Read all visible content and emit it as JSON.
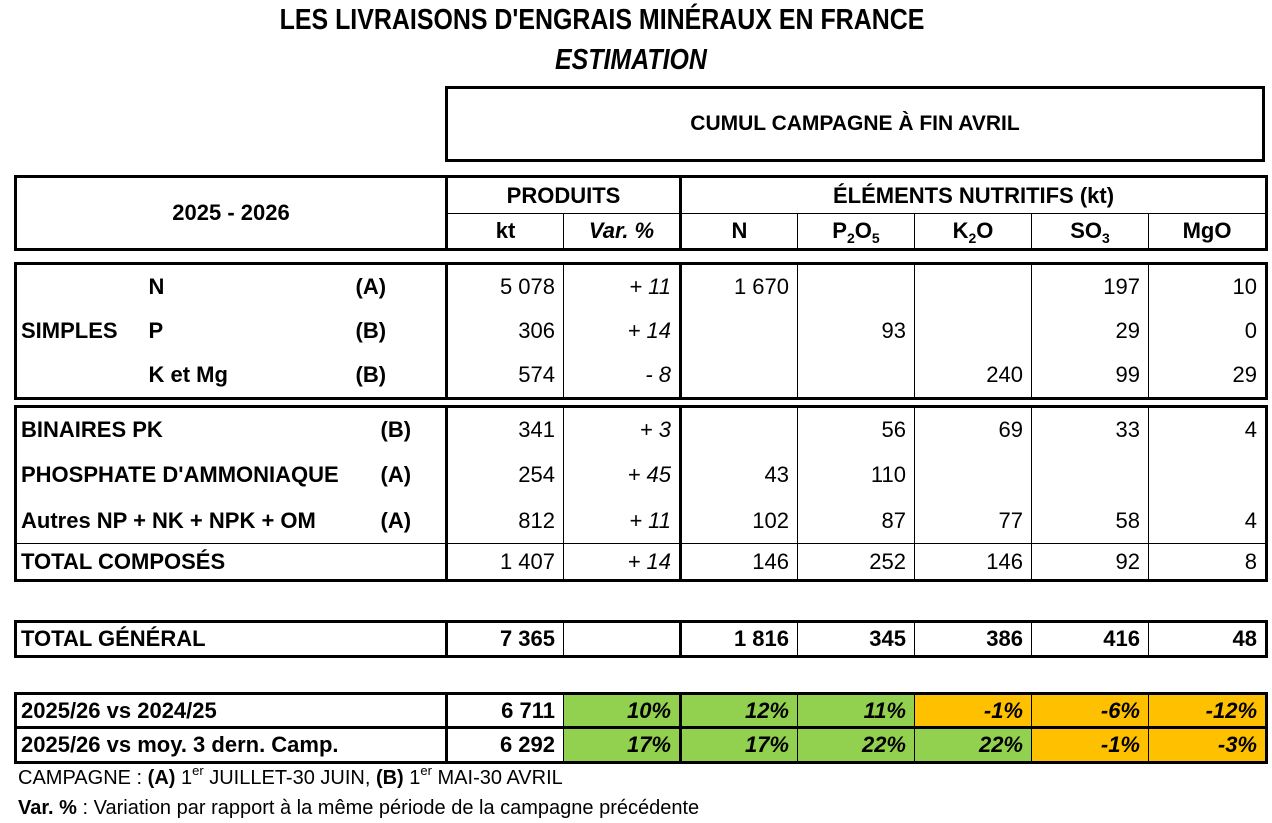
{
  "title": "LES LIVRAISONS D'ENGRAIS MINÉRAUX EN FRANCE",
  "subtitle": "ESTIMATION",
  "cumul_label": "CUMUL CAMPAGNE À FIN AVRIL",
  "header": {
    "season": "2025 - 2026",
    "produits": "PRODUITS",
    "elements": "ÉLÉMENTS NUTRITIFS (kt)",
    "kt": "kt",
    "var": "Var. %",
    "n": "N",
    "p2o5_base": "P",
    "p2o5_sub1": "2",
    "p2o5_mid": "O",
    "p2o5_sub2": "5",
    "k2o_base": "K",
    "k2o_sub": "2",
    "k2o_end": "O",
    "so3_base": "SO",
    "so3_sub": "3",
    "mgo": "MgO"
  },
  "simples": {
    "group_label": "SIMPLES",
    "rows": [
      {
        "label": "N",
        "camp": "(A)",
        "kt": "5 078",
        "var": "+ 11",
        "n": "1 670",
        "p": "",
        "k": "",
        "so3": "197",
        "mgo": "10"
      },
      {
        "label": "P",
        "camp": "(B)",
        "kt": "306",
        "var": "+ 14",
        "n": "",
        "p": "93",
        "k": "",
        "so3": "29",
        "mgo": "0"
      },
      {
        "label": "K et Mg",
        "camp": "(B)",
        "kt": "574",
        "var": "- 8",
        "n": "",
        "p": "",
        "k": "240",
        "so3": "99",
        "mgo": "29"
      }
    ]
  },
  "composes": {
    "rows": [
      {
        "label": "BINAIRES PK",
        "camp": "(B)",
        "kt": "341",
        "var": "+ 3",
        "n": "",
        "p": "56",
        "k": "69",
        "so3": "33",
        "mgo": "4"
      },
      {
        "label": "PHOSPHATE D'AMMONIAQUE",
        "camp": "(A)",
        "kt": "254",
        "var": "+ 45",
        "n": "43",
        "p": "110",
        "k": "",
        "so3": "",
        "mgo": ""
      },
      {
        "label": "Autres NP + NK + NPK + OM",
        "camp": "(A)",
        "kt": "812",
        "var": "+ 11",
        "n": "102",
        "p": "87",
        "k": "77",
        "so3": "58",
        "mgo": "4"
      }
    ],
    "total": {
      "label": "TOTAL COMPOSÉS",
      "kt": "1 407",
      "var": "+ 14",
      "n": "146",
      "p": "252",
      "k": "146",
      "so3": "92",
      "mgo": "8"
    }
  },
  "total_general": {
    "label": "TOTAL GÉNÉRAL",
    "kt": "7 365",
    "var": "",
    "n": "1 816",
    "p": "345",
    "k": "386",
    "so3": "416",
    "mgo": "48"
  },
  "comparisons": [
    {
      "label": "2025/26 vs 2024/25",
      "kt": "6 711",
      "var": "10%",
      "n": "12%",
      "p": "11%",
      "k": "-1%",
      "so3": "-6%",
      "mgo": "-12%"
    },
    {
      "label": "2025/26 vs moy. 3 dern. Camp.",
      "kt": "6 292",
      "var": "17%",
      "n": "17%",
      "p": "22%",
      "k": "22%",
      "so3": "-1%",
      "mgo": "-3%"
    }
  ],
  "colors": {
    "positive": "#92d050",
    "negative": "#ffc000"
  },
  "footnotes": {
    "campagne_prefix": "CAMPAGNE : ",
    "a_code": "(A)",
    "a_num": " 1",
    "a_sup": "er",
    "a_text": " JUILLET-30 JUIN, ",
    "b_code": "(B)",
    "b_num": " 1",
    "b_sup": "er",
    "b_text": " MAI-30 AVRIL",
    "var_label": "Var. %",
    "var_text": " : Variation par rapport à la même période de la campagne précédente"
  }
}
